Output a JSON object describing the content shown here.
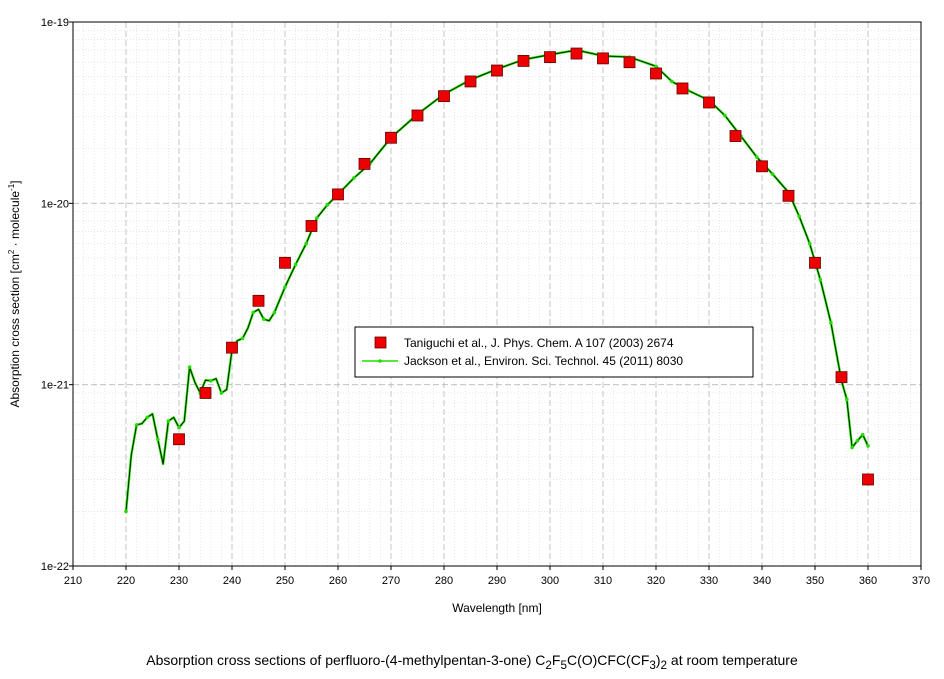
{
  "chart_data": {
    "type": "scatter",
    "xlabel": "Wavelength [nm]",
    "ylabel_parts": [
      "Absorption cross section [cm",
      "2",
      " · molecule",
      "-1",
      "]"
    ],
    "xlim": [
      210,
      370
    ],
    "ylim": [
      1e-22,
      1e-19
    ],
    "yscale": "log",
    "grid": true,
    "legend_position": "center-right",
    "x_ticks": [
      210,
      220,
      230,
      240,
      250,
      260,
      270,
      280,
      290,
      300,
      310,
      320,
      330,
      340,
      350,
      360,
      370
    ],
    "y_ticks": [
      {
        "value": 1e-22,
        "label": "1e-22"
      },
      {
        "value": 1e-21,
        "label": "1e-21"
      },
      {
        "value": 1e-20,
        "label": "1e-20"
      },
      {
        "value": 1e-19,
        "label": "1e-19"
      }
    ],
    "series": [
      {
        "name": "Taniguchi et al., J. Phys. Chem. A 107 (2003) 2674",
        "marker": "square",
        "color": "#ee0000",
        "x": [
          230,
          235,
          240,
          245,
          250,
          255,
          260,
          265,
          270,
          275,
          280,
          285,
          290,
          295,
          300,
          305,
          310,
          315,
          320,
          325,
          330,
          335,
          340,
          345,
          350,
          355,
          360
        ],
        "y": [
          5e-22,
          9e-22,
          1.6e-21,
          2.9e-21,
          4.7e-21,
          7.5e-21,
          1.12e-20,
          1.65e-20,
          2.3e-20,
          3.05e-20,
          3.9e-20,
          4.7e-20,
          5.4e-20,
          6.1e-20,
          6.4e-20,
          6.7e-20,
          6.3e-20,
          6e-20,
          5.2e-20,
          4.3e-20,
          3.6e-20,
          2.35e-20,
          1.6e-20,
          1.1e-20,
          4.7e-21,
          1.1e-21,
          3e-22
        ]
      },
      {
        "name": "Jackson et al., Environ. Sci. Technol. 45 (2011) 8030",
        "marker": "dot",
        "color": "#22dd00",
        "x": [
          220,
          221,
          222,
          223,
          224,
          225,
          226,
          227,
          228,
          229,
          230,
          231,
          232,
          233,
          234,
          235,
          236,
          237,
          238,
          239,
          240,
          241,
          242,
          243,
          244,
          245,
          246,
          247,
          248,
          250,
          252,
          254,
          256,
          258,
          260,
          263,
          266,
          270,
          275,
          280,
          285,
          290,
          295,
          300,
          305,
          310,
          315,
          320,
          323,
          326,
          330,
          333,
          336,
          339,
          342,
          345,
          347,
          349,
          351,
          353,
          355,
          356,
          357,
          358,
          359,
          360
        ],
        "y": [
          2e-22,
          4.1e-22,
          6e-22,
          6.1e-22,
          6.6e-22,
          6.9e-22,
          5e-22,
          3.65e-22,
          6.3e-22,
          6.6e-22,
          5.8e-22,
          6.3e-22,
          1.25e-21,
          1.03e-21,
          9e-22,
          1.06e-21,
          1.05e-21,
          1.08e-21,
          9e-22,
          9.4e-22,
          1.55e-21,
          1.75e-21,
          1.8e-21,
          2.05e-21,
          2.5e-21,
          2.6e-21,
          2.3e-21,
          2.25e-21,
          2.5e-21,
          3.45e-21,
          4.6e-21,
          6e-21,
          8.3e-21,
          9.8e-21,
          1.12e-20,
          1.38e-20,
          1.65e-20,
          2.3e-20,
          3.1e-20,
          4e-20,
          4.8e-20,
          5.5e-20,
          6.2e-20,
          6.6e-20,
          7e-20,
          6.5e-20,
          6.4e-20,
          5.7e-20,
          4.7e-20,
          4.2e-20,
          3.7e-20,
          3.05e-20,
          2.35e-20,
          1.8e-20,
          1.45e-20,
          1.15e-20,
          8.5e-21,
          6e-21,
          3.8e-21,
          2.2e-21,
          1.05e-21,
          8.3e-22,
          4.5e-22,
          4.9e-22,
          5.3e-22,
          4.6e-22
        ]
      }
    ]
  },
  "caption": {
    "prefix": "Absorption cross sections of perfluoro-(4-methylpentan-3-one) C",
    "sub1": "2",
    "mid1": "F",
    "sub2": "5",
    "mid2": "C(O)CFC(CF",
    "sub3": "3",
    "mid3": ")",
    "sub4": "2",
    "suffix": " at room temperature"
  }
}
